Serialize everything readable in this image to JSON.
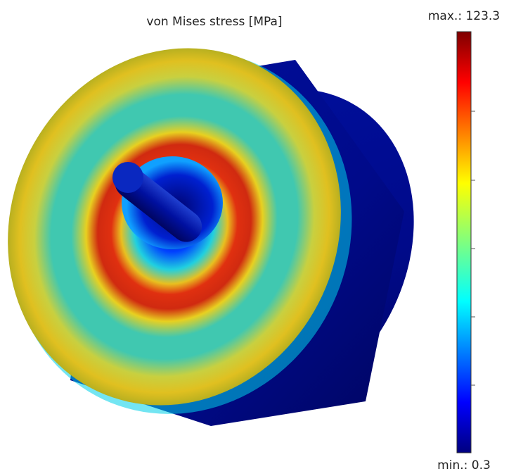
{
  "title": "von Mises stress [MPa]",
  "colorbar": {
    "max_label": "max.: 123.3",
    "min_label": "min.: 0.3"
  }
}
